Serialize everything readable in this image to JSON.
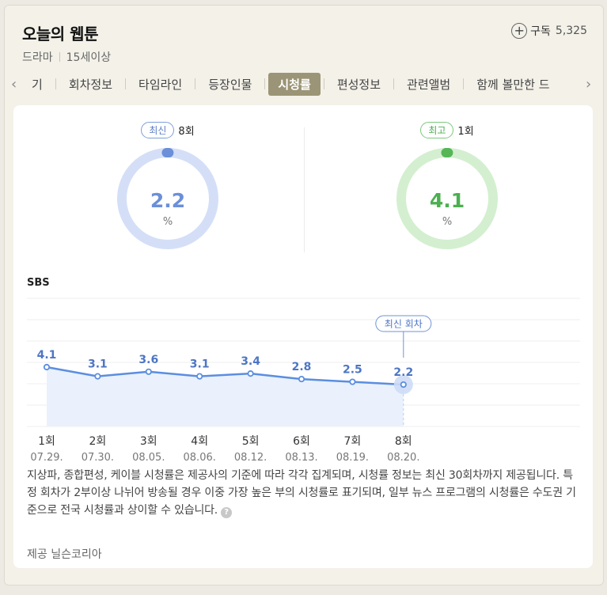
{
  "header": {
    "title": "오늘의 웹툰",
    "genre": "드라마",
    "rating": "15세이상",
    "subscribe_label": "구독",
    "subscribe_count": "5,325"
  },
  "tabs": [
    "기",
    "회차정보",
    "타임라인",
    "등장인물",
    "시청률",
    "편성정보",
    "관련앨범",
    "함께 볼만한 드"
  ],
  "active_tab": "시청률",
  "gauges": {
    "latest": {
      "pill": "최신",
      "episode": "8회",
      "value": "2.2",
      "unit": "%",
      "color": "#6b8fd9",
      "track_color": "#d4dff7"
    },
    "best": {
      "pill": "최고",
      "episode": "1회",
      "value": "4.1",
      "unit": "%",
      "color": "#56b655",
      "track_color": "#d3efd0"
    }
  },
  "chart_data": {
    "type": "line",
    "title": "SBS",
    "categories": [
      "1회",
      "2회",
      "3회",
      "4회",
      "5회",
      "6회",
      "7회",
      "8회"
    ],
    "dates": [
      "07.29.",
      "07.30.",
      "08.05.",
      "08.06.",
      "08.12.",
      "08.13.",
      "08.19.",
      "08.20."
    ],
    "values": [
      4.1,
      3.1,
      3.6,
      3.1,
      3.4,
      2.8,
      2.5,
      2.2
    ],
    "callout": "최신 회차",
    "line_color": "#5b8ee0",
    "fill_color": "#eaf1fd",
    "grid": true
  },
  "note": "지상파, 종합편성, 케이블 시청률은 제공사의 기준에 따라 각각 집계되며, 시청률 정보는 최신 30회차까지 제공됩니다. 특정 회차가 2부이상 나뉘어 방송될 경우 이중 가장 높은 부의 시청률로 표기되며, 일부 뉴스 프로그램의 시청률은 수도권 기준으로 전국 시청률과 상이할 수 있습니다.",
  "help_icon": "?",
  "provider": "제공 닐슨코리아"
}
